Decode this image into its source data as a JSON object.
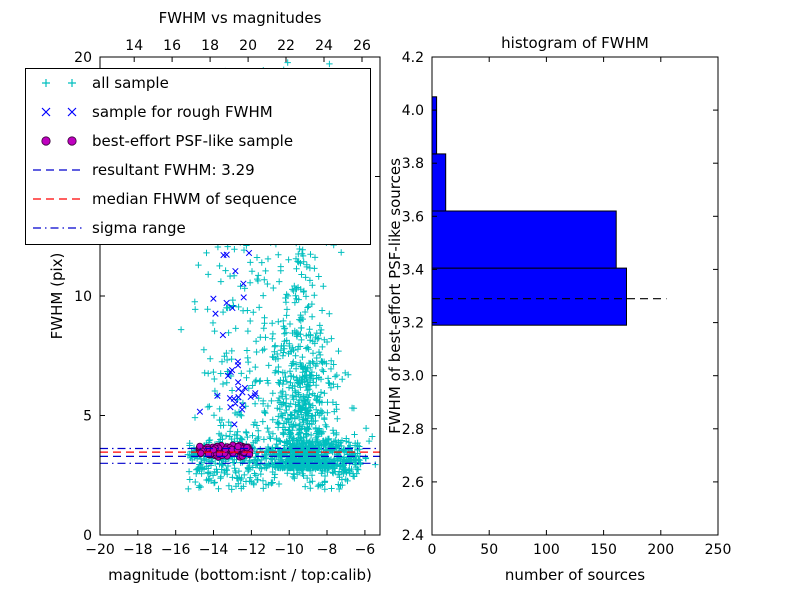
{
  "figure": {
    "background": "#ffffff"
  },
  "chart_data": [
    {
      "type": "scatter",
      "title": "FWHM vs magnitudes",
      "xlabel": "magnitude (bottom:isnt / top:calib)",
      "ylabel": "FWHM (pix)",
      "xlim": [
        -20,
        -5.2
      ],
      "ylim": [
        0,
        20
      ],
      "xticks": [
        -20,
        -18,
        -16,
        -14,
        -12,
        -10,
        -8,
        -6
      ],
      "xtick_labels": [
        "−20",
        "−18",
        "−16",
        "−14",
        "−12",
        "−10",
        "−8",
        "−6"
      ],
      "yticks": [
        0,
        5,
        10,
        15,
        20
      ],
      "ytick_labels": [
        "0",
        "5",
        "10",
        "15",
        "20"
      ],
      "top_axis": {
        "lim": [
          12.2,
          26.95
        ],
        "ticks": [
          14,
          16,
          18,
          20,
          22,
          24,
          26
        ],
        "tick_labels": [
          "14",
          "16",
          "18",
          "20",
          "22",
          "24",
          "26"
        ]
      },
      "seed": 20,
      "series": [
        {
          "name": "all sample",
          "marker": "plus",
          "color": "#00bfbf",
          "clusters": [
            {
              "count": 650,
              "x": {
                "dist": "normal",
                "mean": -9.4,
                "sd": 0.7
              },
              "y": {
                "dist": "power",
                "min": 2.8,
                "max": 19.5,
                "exp": 2.6
              }
            },
            {
              "count": 320,
              "x": {
                "dist": "normal",
                "mean": -9.3,
                "sd": 1.15
              },
              "y": {
                "dist": "power",
                "min": 2.8,
                "max": 8.5,
                "exp": 1.8
              }
            },
            {
              "count": 360,
              "x": {
                "dist": "uniform",
                "min": -15.4,
                "max": -6.2
              },
              "y": {
                "dist": "normal",
                "mean": 3.35,
                "sd": 0.3
              }
            },
            {
              "count": 160,
              "x": {
                "dist": "normal",
                "mean": -7.9,
                "sd": 1.1
              },
              "y": {
                "dist": "normal",
                "mean": 3.3,
                "sd": 0.4
              }
            },
            {
              "count": 190,
              "x": {
                "dist": "normal",
                "mean": -12.4,
                "sd": 1.4
              },
              "y": {
                "dist": "power",
                "min": 3.9,
                "max": 14.0,
                "exp": 1.7
              }
            },
            {
              "count": 90,
              "x": {
                "dist": "uniform",
                "min": -14.6,
                "max": -7.2
              },
              "y": {
                "dist": "uniform",
                "min": 13.0,
                "max": 19.9
              }
            },
            {
              "count": 130,
              "x": {
                "dist": "uniform",
                "min": -15.4,
                "max": -6.3
              },
              "y": {
                "dist": "uniform",
                "min": 1.9,
                "max": 2.9
              }
            }
          ]
        },
        {
          "name": "sample for rough FWHM",
          "marker": "x",
          "color": "#0000ff",
          "clusters": [
            {
              "count": 20,
              "x": {
                "dist": "normal",
                "mean": -13.2,
                "sd": 0.55
              },
              "y": {
                "dist": "power",
                "min": 4.6,
                "max": 12.0,
                "exp": 1.6
              }
            },
            {
              "count": 8,
              "x": {
                "dist": "normal",
                "mean": -12.5,
                "sd": 0.35
              },
              "y": {
                "dist": "normal",
                "mean": 6.0,
                "sd": 0.5
              }
            },
            {
              "count": 5,
              "x": {
                "dist": "uniform",
                "min": -13.6,
                "max": -12.1
              },
              "y": {
                "dist": "uniform",
                "min": 9.4,
                "max": 11.8
              }
            }
          ]
        },
        {
          "name": "best-effort PSF-like sample",
          "marker": "circle",
          "color": "#bf00bf",
          "edge": "#3a003a",
          "clusters": [
            {
              "count": 80,
              "x": {
                "dist": "uniform",
                "min": -14.85,
                "max": -12.05
              },
              "y": {
                "dist": "normal",
                "mean": 3.52,
                "sd": 0.13
              }
            }
          ]
        }
      ],
      "hlines": [
        {
          "name": "resultant FWHM",
          "y": 3.29,
          "color": "#0000cd",
          "style": "dashed"
        },
        {
          "name": "median FHWM",
          "y": 3.47,
          "color": "#ff0000",
          "style": "dashed"
        },
        {
          "name": "sigma range upper",
          "y": 3.62,
          "color": "#0000cd",
          "style": "dashdot"
        },
        {
          "name": "sigma range lower",
          "y": 3.0,
          "color": "#0000cd",
          "style": "dashdot"
        }
      ],
      "legend": {
        "entries": [
          {
            "label": "all sample",
            "type": "marker",
            "marker": "plus",
            "color": "#00bfbf"
          },
          {
            "label": "sample for rough FWHM",
            "type": "marker",
            "marker": "x",
            "color": "#0000ff"
          },
          {
            "label": "best-effort PSF-like sample",
            "type": "marker",
            "marker": "circle",
            "color": "#bf00bf",
            "edge": "#3a003a"
          },
          {
            "label": "resultant FWHM: 3.29",
            "type": "line",
            "style": "dashed",
            "color": "#0000cd"
          },
          {
            "label": "median FHWM of sequence",
            "type": "line",
            "style": "dashed",
            "color": "#ff0000"
          },
          {
            "label": "sigma range",
            "type": "line",
            "style": "dashdot",
            "color": "#0000cd"
          }
        ]
      }
    },
    {
      "type": "bar",
      "orientation": "horizontal",
      "title": "histogram of FWHM",
      "xlabel": "number of sources",
      "ylabel": "FWHM of best-effort PSF-like sources",
      "xlim": [
        0,
        250
      ],
      "ylim": [
        2.4,
        4.2
      ],
      "xticks": [
        0,
        50,
        100,
        150,
        200,
        250
      ],
      "xtick_labels": [
        "0",
        "50",
        "100",
        "150",
        "200",
        "250"
      ],
      "yticks": [
        2.4,
        2.6,
        2.8,
        3.0,
        3.2,
        3.4,
        3.6,
        3.8,
        4.0,
        4.2
      ],
      "ytick_labels": [
        "2.4",
        "2.6",
        "2.8",
        "3.0",
        "3.2",
        "3.4",
        "3.6",
        "3.8",
        "4.0",
        "4.2"
      ],
      "bar_color": "#0000ff",
      "bar_edge": "#000000",
      "bins": [
        {
          "from": 3.19,
          "to": 3.405,
          "count": 170
        },
        {
          "from": 3.405,
          "to": 3.62,
          "count": 161
        },
        {
          "from": 3.62,
          "to": 3.835,
          "count": 12
        },
        {
          "from": 3.835,
          "to": 4.05,
          "count": 4
        }
      ],
      "dashed_line": {
        "y": 3.29,
        "x_from": 0,
        "x_to": 205,
        "color": "#000000",
        "style": "dashed"
      }
    }
  ]
}
